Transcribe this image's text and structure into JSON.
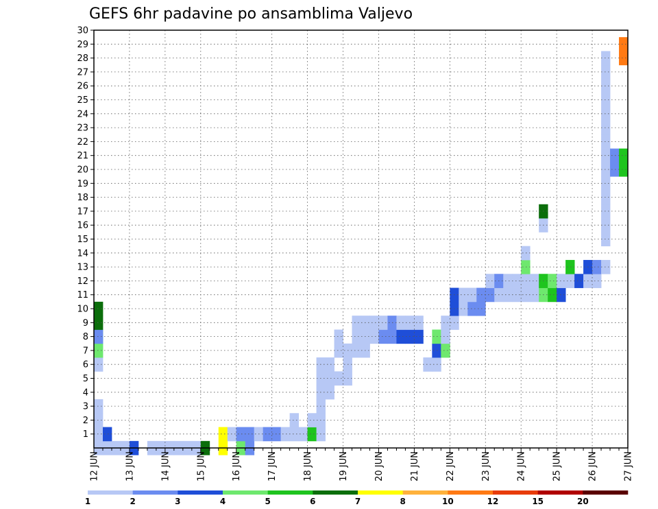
{
  "chart_data": {
    "type": "heatmap",
    "title": "GEFS 6hr padavine po ansamblima Valjevo",
    "xlabel": "",
    "ylabel": "",
    "x_tick_labels": [
      "12 JUN",
      "13 JUN",
      "14 JUN",
      "15 JUN",
      "16 JUN",
      "17 JUN",
      "18 JUN",
      "19 JUN",
      "20 JUN",
      "21 JUN",
      "22 JUN",
      "23 JUN",
      "24 JUN",
      "25 JUN",
      "26 JUN",
      "27 JUN"
    ],
    "y_tick_labels": [
      "1",
      "2",
      "3",
      "4",
      "5",
      "6",
      "7",
      "8",
      "9",
      "10",
      "11",
      "12",
      "13",
      "14",
      "15",
      "16",
      "17",
      "18",
      "19",
      "20",
      "21",
      "22",
      "23",
      "24",
      "25",
      "26",
      "27",
      "28",
      "29",
      "30"
    ],
    "xlim": [
      0,
      60
    ],
    "ylim": [
      0,
      30
    ],
    "grid": true,
    "colorbar": {
      "position": "bottom",
      "labels": [
        "1",
        "2",
        "3",
        "4",
        "5",
        "6",
        "7",
        "8",
        "10",
        "12",
        "15",
        "20"
      ],
      "colors": [
        "#b7c8f5",
        "#6b8cf0",
        "#1f4ed8",
        "#6ee86e",
        "#1ec41e",
        "#0b6e0b",
        "#ffff00",
        "#ffb23c",
        "#ff7a14",
        "#e83c0a",
        "#b00000",
        "#5a0000"
      ]
    },
    "cells": [
      [
        1,
        0,
        1
      ],
      [
        2,
        0,
        1
      ],
      [
        3,
        0,
        1
      ],
      [
        4,
        0,
        1
      ],
      [
        7,
        0,
        1
      ],
      [
        8,
        0,
        1
      ],
      [
        8,
        0,
        4
      ],
      [
        9,
        0,
        4
      ],
      [
        9,
        0,
        2
      ],
      [
        10,
        0,
        6
      ],
      [
        11,
        0,
        6
      ],
      [
        1,
        1,
        1
      ],
      [
        2,
        1,
        3
      ],
      [
        1,
        2,
        1
      ],
      [
        1,
        3,
        1
      ],
      [
        1,
        4,
        3
      ],
      [
        1,
        6,
        1
      ],
      [
        1,
        7,
        1
      ],
      [
        1,
        8,
        1
      ],
      [
        1,
        9,
        1
      ],
      [
        1,
        10,
        1
      ],
      [
        1,
        11,
        1
      ],
      [
        1,
        12,
        6
      ],
      [
        1,
        14,
        7
      ],
      [
        2,
        14,
        7
      ],
      [
        2,
        15,
        1
      ],
      [
        1,
        16,
        4
      ],
      [
        2,
        16,
        2
      ],
      [
        1,
        17,
        2
      ],
      [
        2,
        17,
        2
      ],
      [
        2,
        18,
        1
      ],
      [
        2,
        19,
        2
      ],
      [
        2,
        20,
        2
      ],
      [
        2,
        21,
        1
      ],
      [
        2,
        22,
        1
      ],
      [
        3,
        22,
        1
      ],
      [
        2,
        23,
        1
      ],
      [
        2,
        24,
        5
      ],
      [
        3,
        24,
        1
      ],
      [
        2,
        25,
        1
      ],
      [
        3,
        25,
        1
      ],
      [
        4,
        25,
        1
      ],
      [
        5,
        25,
        1
      ],
      [
        6,
        25,
        1
      ],
      [
        7,
        25,
        1
      ],
      [
        5,
        26,
        1
      ],
      [
        6,
        26,
        1
      ],
      [
        7,
        26,
        1
      ],
      [
        6,
        27,
        1
      ],
      [
        8,
        27,
        1
      ],
      [
        9,
        27,
        1
      ],
      [
        6,
        28,
        1
      ],
      [
        7,
        28,
        1
      ],
      [
        8,
        28,
        1
      ],
      [
        8,
        29,
        1
      ],
      [
        9,
        29,
        1
      ],
      [
        10,
        29,
        1
      ],
      [
        8,
        30,
        1
      ],
      [
        9,
        30,
        1
      ],
      [
        10,
        30,
        1
      ],
      [
        9,
        31,
        1
      ],
      [
        10,
        31,
        1
      ],
      [
        9,
        32,
        2
      ],
      [
        10,
        32,
        1
      ],
      [
        9,
        33,
        2
      ],
      [
        10,
        33,
        2
      ],
      [
        9,
        34,
        3
      ],
      [
        10,
        34,
        1
      ],
      [
        9,
        35,
        3
      ],
      [
        10,
        35,
        1
      ],
      [
        9,
        36,
        3
      ],
      [
        10,
        36,
        1
      ],
      [
        7,
        37,
        1
      ],
      [
        7,
        38,
        1
      ],
      [
        8,
        38,
        3
      ],
      [
        9,
        38,
        4
      ],
      [
        8,
        39,
        4
      ],
      [
        9,
        39,
        1
      ],
      [
        10,
        39,
        1
      ],
      [
        10,
        40,
        1
      ],
      [
        11,
        40,
        3
      ],
      [
        12,
        40,
        3
      ],
      [
        11,
        41,
        1
      ],
      [
        12,
        41,
        1
      ],
      [
        11,
        42,
        2
      ],
      [
        12,
        42,
        1
      ],
      [
        11,
        43,
        2
      ],
      [
        12,
        43,
        2
      ],
      [
        12,
        44,
        2
      ],
      [
        13,
        44,
        1
      ],
      [
        12,
        45,
        1
      ],
      [
        13,
        45,
        2
      ],
      [
        12,
        46,
        1
      ],
      [
        13,
        46,
        1
      ],
      [
        12,
        47,
        1
      ],
      [
        13,
        47,
        1
      ],
      [
        12,
        48,
        1
      ],
      [
        13,
        48,
        1
      ],
      [
        14,
        48,
        4
      ],
      [
        15,
        48,
        1
      ],
      [
        12,
        49,
        1
      ],
      [
        13,
        49,
        1
      ],
      [
        12,
        50,
        4
      ],
      [
        13,
        50,
        5
      ],
      [
        12,
        51,
        5
      ],
      [
        13,
        51,
        4
      ],
      [
        12,
        52,
        3
      ],
      [
        13,
        52,
        1
      ],
      [
        13,
        53,
        1
      ],
      [
        14,
        53,
        5
      ],
      [
        13,
        54,
        3
      ],
      [
        13,
        55,
        1
      ],
      [
        14,
        55,
        3
      ],
      [
        13,
        56,
        1
      ],
      [
        14,
        56,
        2
      ],
      [
        14,
        57,
        1
      ],
      [
        16,
        57,
        1
      ],
      [
        17,
        57,
        1
      ],
      [
        18,
        57,
        1
      ],
      [
        19,
        57,
        1
      ],
      [
        20,
        57,
        1
      ],
      [
        21,
        57,
        1
      ],
      [
        22,
        57,
        1
      ],
      [
        23,
        57,
        1
      ],
      [
        24,
        57,
        1
      ],
      [
        25,
        57,
        1
      ],
      [
        26,
        57,
        1
      ],
      [
        27,
        57,
        1
      ],
      [
        28,
        57,
        1
      ],
      [
        29,
        57,
        1
      ],
      [
        29,
        59,
        9
      ],
      [
        30,
        59,
        9
      ],
      [
        17,
        50,
        1
      ],
      [
        18,
        50,
        6
      ],
      [
        21,
        58,
        2
      ],
      [
        22,
        58,
        2
      ],
      [
        21,
        59,
        5
      ],
      [
        22,
        59,
        5
      ]
    ]
  }
}
